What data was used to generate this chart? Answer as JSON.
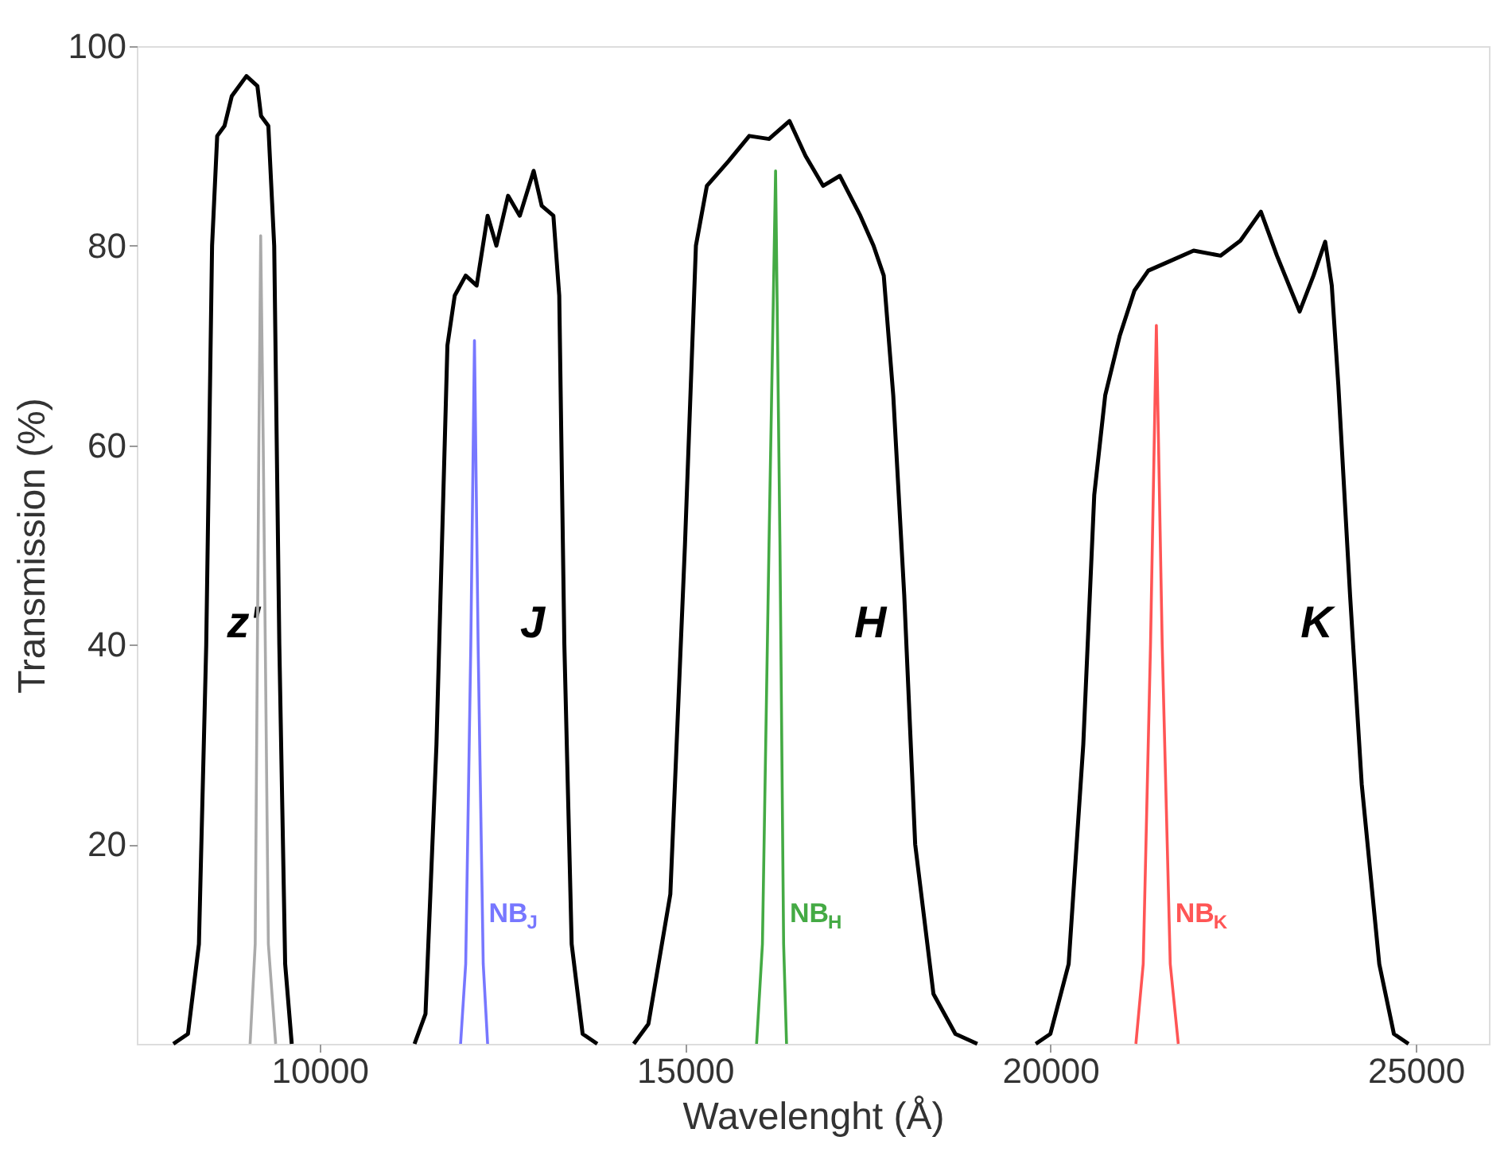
{
  "chart_data": {
    "type": "line",
    "xlabel": "Wavelenght (Å)",
    "ylabel": "Transmission (%)",
    "xlim": [
      7500,
      26000
    ],
    "xticks": [
      10000,
      15000,
      20000,
      25000
    ],
    "ylim": [
      0,
      100
    ],
    "yticks": [
      20,
      40,
      60,
      80,
      100
    ],
    "grid": false,
    "legend": false,
    "marker": "none",
    "line_style": "solid",
    "series": [
      {
        "name": "z'",
        "color": "#000000",
        "x": [
          8000,
          8200,
          8350,
          8450,
          8530,
          8600,
          8700,
          8800,
          9000,
          9150,
          9200,
          9300,
          9380,
          9450,
          9530,
          9620
        ],
        "values": [
          0,
          1,
          10,
          40,
          80,
          91,
          92,
          95,
          97,
          96,
          93,
          92,
          80,
          40,
          8,
          0
        ]
      },
      {
        "color": "#aaaaaa",
        "x": [
          9050,
          9120,
          9170,
          9195,
          9230,
          9300,
          9400
        ],
        "values": [
          0,
          10,
          60,
          81,
          60,
          10,
          0
        ]
      },
      {
        "name": "J",
        "color": "#000000",
        "x": [
          11300,
          11450,
          11600,
          11750,
          11850,
          12000,
          12150,
          12300,
          12420,
          12580,
          12740,
          12930,
          13040,
          13200,
          13280,
          13350,
          13450,
          13600,
          13800
        ],
        "values": [
          0,
          3,
          30,
          70,
          75,
          77,
          76,
          83,
          80,
          85,
          83,
          87.5,
          84,
          83,
          75,
          40,
          10,
          1,
          0
        ]
      },
      {
        "name": "NB$_{J}$",
        "color": "#7777ff",
        "x": [
          11930,
          12000,
          12070,
          12120,
          12170,
          12240,
          12300
        ],
        "values": [
          0,
          8,
          40,
          70.5,
          40,
          8,
          0
        ]
      },
      {
        "name": "H",
        "color": "#000000",
        "x": [
          14300,
          14500,
          14800,
          15000,
          15150,
          15300,
          15600,
          15880,
          16150,
          16430,
          16650,
          16890,
          17120,
          17400,
          17580,
          17720,
          17850,
          18000,
          18150,
          18400,
          18700,
          19000
        ],
        "values": [
          0,
          2,
          15,
          50,
          80,
          86,
          88.5,
          91,
          90.7,
          92.5,
          89,
          86,
          87,
          83,
          80,
          77,
          65,
          45,
          20,
          5,
          1,
          0
        ]
      },
      {
        "name": "NB$_{H}$",
        "color": "#44aa44",
        "x": [
          15980,
          16060,
          16150,
          16240,
          16300,
          16350,
          16390
        ],
        "values": [
          0,
          10,
          50,
          87.5,
          50,
          10,
          0
        ]
      },
      {
        "name": "K",
        "color": "#000000",
        "x": [
          19800,
          20000,
          20250,
          20450,
          20600,
          20750,
          20950,
          21150,
          21340,
          21650,
          21960,
          22330,
          22600,
          22880,
          23100,
          23410,
          23600,
          23760,
          23850,
          23940,
          24100,
          24260,
          24500,
          24700,
          24900
        ],
        "values": [
          0,
          1,
          8,
          30,
          55,
          65,
          71,
          75.5,
          77.5,
          78.5,
          79.5,
          79,
          80.5,
          83.4,
          79,
          73.4,
          77,
          80.4,
          76,
          66,
          45,
          26,
          8,
          1,
          0
        ]
      },
      {
        "name": "NB$_{K}$",
        "color": "#ff5555",
        "x": [
          21170,
          21270,
          21370,
          21450,
          21530,
          21640,
          21750
        ],
        "values": [
          0,
          8,
          40,
          72,
          40,
          8,
          0
        ]
      }
    ]
  }
}
